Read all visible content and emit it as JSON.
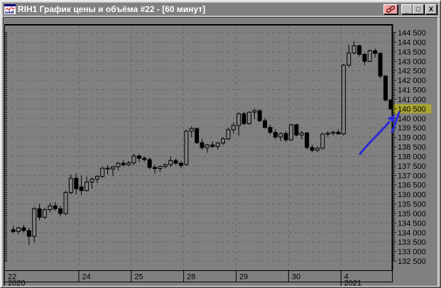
{
  "window": {
    "title": "RIH1 График цены и объёма #22 - [60 минут]",
    "icon": "price-volume-chart-icon",
    "buttons": {
      "link_name": "link-window",
      "minimize_glyph": "_",
      "maximize_glyph": "□",
      "close_glyph": "X"
    }
  },
  "colors": {
    "titlebar_bg": "#808080",
    "titlebar_text": "#ffffff",
    "frame": "#c0c0c0",
    "link_button_bg": "#f0a0a0",
    "chart_bg": "#808080",
    "grid": "#666666",
    "candle": "#000000",
    "bull_fill": "#808080",
    "bear_fill": "#000000",
    "axis_text": "#000000",
    "highlight_bg": "#a8a52f",
    "arrow": "#2a2ad8"
  },
  "chart_data": {
    "type": "candlestick",
    "title": "RIH1 График цены и объёма #22",
    "interval": "60 минут",
    "y_axis": {
      "min": 132500,
      "max": 144500,
      "step": 500,
      "minor_step": 100,
      "tick_format": "space-thousands",
      "highlight_value": 140500
    },
    "x_axis": {
      "year_markers": [
        {
          "label": "2020",
          "day_index": 0
        },
        {
          "label": "2021",
          "day_index": 6
        }
      ]
    },
    "days": [
      {
        "label": "22",
        "candles": [
          [
            134150,
            134350,
            133950,
            134050
          ],
          [
            134050,
            134300,
            133900,
            134250
          ],
          [
            134250,
            134400,
            134000,
            134100
          ],
          [
            134100,
            134250,
            133350,
            133800
          ],
          [
            133800,
            135350,
            133500,
            135250
          ],
          [
            135250,
            135500,
            134650,
            134800
          ],
          [
            134800,
            135300,
            134700,
            135200
          ],
          [
            135200,
            135550,
            135050,
            135400
          ],
          [
            135400,
            135600,
            135150,
            135250
          ],
          [
            135250,
            135400,
            134850,
            135000
          ],
          [
            135000,
            136200,
            134900,
            136100
          ],
          [
            136100,
            137050,
            136000,
            136850
          ],
          [
            136850,
            137100,
            136000,
            136300
          ]
        ]
      },
      {
        "label": "24",
        "candles": [
          [
            136400,
            137000,
            135950,
            136200
          ],
          [
            136200,
            136950,
            136150,
            136650
          ],
          [
            136650,
            136900,
            136300,
            136800
          ],
          [
            136800,
            137000,
            136600,
            136950
          ],
          [
            136950,
            137450,
            136850,
            137380
          ],
          [
            137380,
            137550,
            137050,
            137340
          ],
          [
            137340,
            137500,
            136950,
            137450
          ],
          [
            137450,
            137700,
            137250,
            137640
          ],
          [
            137640,
            137800,
            137450,
            137560
          ],
          [
            137560,
            137750,
            137480,
            137660
          ]
        ]
      },
      {
        "label": "25",
        "candles": [
          [
            137660,
            138130,
            137530,
            138020
          ],
          [
            138020,
            138120,
            137700,
            137900
          ],
          [
            137900,
            138000,
            137720,
            137830
          ],
          [
            137830,
            137950,
            137300,
            137420
          ],
          [
            137420,
            137560,
            137100,
            137360
          ],
          [
            137360,
            137520,
            137180,
            137470
          ],
          [
            137470,
            137620,
            137360,
            137560
          ],
          [
            137560,
            138000,
            137450,
            137780
          ],
          [
            137780,
            137880,
            137550,
            137640
          ],
          [
            137640,
            137760,
            137380,
            137520
          ]
        ]
      },
      {
        "label": "28",
        "candles": [
          [
            137570,
            139400,
            137500,
            139320
          ],
          [
            139320,
            139580,
            139000,
            139460
          ],
          [
            139460,
            139520,
            138650,
            138720
          ],
          [
            138720,
            138920,
            138350,
            138460
          ],
          [
            138460,
            138660,
            138200,
            138600
          ],
          [
            138600,
            138800,
            138420,
            138520
          ],
          [
            138520,
            138760,
            138360,
            138700
          ],
          [
            138700,
            139020,
            138600,
            138920
          ],
          [
            138920,
            139500,
            138850,
            139400
          ],
          [
            139400,
            139780,
            139200,
            139620
          ]
        ]
      },
      {
        "label": "29",
        "candles": [
          [
            139620,
            140300,
            139100,
            140240
          ],
          [
            140240,
            140320,
            139650,
            139720
          ],
          [
            139720,
            140360,
            139660,
            140320
          ],
          [
            140320,
            140520,
            139960,
            140400
          ],
          [
            140400,
            140460,
            139800,
            139870
          ],
          [
            139870,
            140020,
            139450,
            139520
          ],
          [
            139520,
            139660,
            139150,
            139260
          ],
          [
            139260,
            139420,
            138900,
            139020
          ],
          [
            139020,
            139260,
            138800,
            139200
          ],
          [
            139200,
            139320,
            138750,
            138870
          ]
        ]
      },
      {
        "label": "30",
        "candles": [
          [
            138870,
            139720,
            138800,
            139660
          ],
          [
            139660,
            139720,
            139060,
            139120
          ],
          [
            139120,
            139320,
            138900,
            139230
          ],
          [
            139230,
            139280,
            138360,
            138470
          ],
          [
            138470,
            138620,
            138200,
            138320
          ],
          [
            138320,
            138520,
            138230,
            138430
          ],
          [
            138430,
            139230,
            138360,
            139170
          ],
          [
            139170,
            139320,
            139020,
            139210
          ],
          [
            139210,
            139360,
            139100,
            139270
          ],
          [
            139270,
            139420,
            139150,
            139180
          ]
        ]
      },
      {
        "label": "4",
        "candles": [
          [
            139180,
            142860,
            139100,
            142790
          ],
          [
            142790,
            143870,
            142680,
            143430
          ],
          [
            143430,
            144060,
            143350,
            143810
          ],
          [
            143810,
            143870,
            143240,
            143360
          ],
          [
            143360,
            143420,
            142790,
            142990
          ],
          [
            142990,
            143610,
            142950,
            143550
          ],
          [
            143550,
            143660,
            143200,
            143410
          ],
          [
            143410,
            143470,
            142110,
            142220
          ],
          [
            142220,
            142280,
            140870,
            140960
          ],
          [
            140960,
            141020,
            140420,
            140500
          ]
        ]
      }
    ]
  },
  "annotation": {
    "type": "hand-drawn-arrow",
    "color": "#2a2ad8",
    "points_to_price": 140500
  }
}
